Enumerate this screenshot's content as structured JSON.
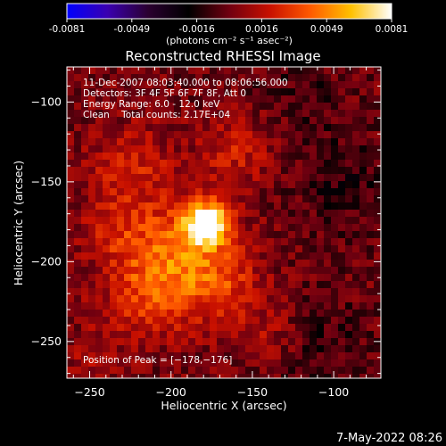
{
  "colorbar": {
    "tick_labels": [
      "-0.0081",
      "-0.0049",
      "-0.0016",
      "0.0016",
      "0.0049",
      "0.0081"
    ],
    "unit_label": "(photons cm⁻² s⁻¹ asec⁻²)",
    "range": [
      -0.0081,
      0.0081
    ],
    "stops": [
      "#0000ff",
      "#3a00b0",
      "#2a0030",
      "#000000",
      "#700010",
      "#c81000",
      "#ff5a00",
      "#ffc000",
      "#ffffff"
    ]
  },
  "chart_data": {
    "type": "heatmap",
    "title": "Reconstructed RHESSI Image",
    "xlabel": "Heliocentric X (arcsec)",
    "ylabel": "Heliocentric Y (arcsec)",
    "xlim": [
      -264,
      -71
    ],
    "ylim": [
      -273,
      -78
    ],
    "x_ticks": [
      -250,
      -200,
      -150,
      -100
    ],
    "y_ticks": [
      -250,
      -200,
      -150,
      -100
    ],
    "x_tick_labels": [
      "−250",
      "−200",
      "−150",
      "−100"
    ],
    "y_tick_labels": [
      "−250",
      "−200",
      "−150",
      "−100"
    ],
    "grid": false,
    "info_lines": [
      "11-Dec-2007 08:03:40.000 to 08:06:56.000",
      "Detectors: 3F 4F 5F 6F 7F 8F, Att 0",
      "Energy Range: 6.0 - 12.0 keV",
      "Clean    Total counts: 2.17E+04"
    ],
    "peak_label": "Position of Peak = [−178,−176]",
    "peak_position": [
      -178,
      -176
    ],
    "sources": [
      {
        "x": -178,
        "y": -176,
        "amp": 0.0081,
        "sigma": 9
      },
      {
        "x": -195,
        "y": -190,
        "amp": 0.0035,
        "sigma": 22
      },
      {
        "x": -215,
        "y": -220,
        "amp": 0.0028,
        "sigma": 20
      },
      {
        "x": -170,
        "y": -215,
        "amp": 0.0026,
        "sigma": 18
      },
      {
        "x": -225,
        "y": -140,
        "amp": 0.0022,
        "sigma": 18
      },
      {
        "x": -160,
        "y": -130,
        "amp": 0.002,
        "sigma": 16
      },
      {
        "x": -235,
        "y": -180,
        "amp": 0.0018,
        "sigma": 14
      },
      {
        "x": -140,
        "y": -245,
        "amp": 0.0014,
        "sigma": 14
      },
      {
        "x": -250,
        "y": -260,
        "amp": 0.0012,
        "sigma": 12
      },
      {
        "x": -95,
        "y": -150,
        "amp": -0.0012,
        "sigma": 22
      },
      {
        "x": -110,
        "y": -250,
        "amp": -0.001,
        "sigma": 24
      },
      {
        "x": -120,
        "y": -95,
        "amp": -0.0009,
        "sigma": 20
      }
    ]
  },
  "footer": {
    "timestamp": "7-May-2022 08:26"
  }
}
